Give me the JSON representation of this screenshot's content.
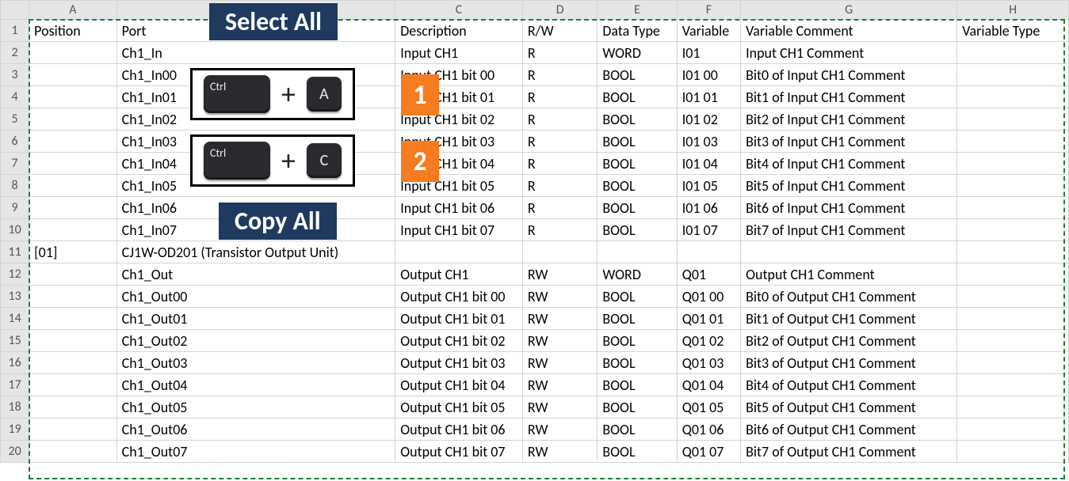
{
  "columns": {
    "headers": [
      "A",
      "B",
      "C",
      "D",
      "E",
      "F",
      "G",
      "H"
    ],
    "widths": [
      110,
      350,
      160,
      94,
      100,
      80,
      272,
      140
    ],
    "fields": [
      "position",
      "port",
      "description",
      "rw",
      "datatype",
      "variable",
      "varcomment",
      "vartype"
    ]
  },
  "header_row": {
    "position": "Position",
    "port": "Port",
    "description": "Description",
    "rw": "R/W",
    "datatype": "Data Type",
    "variable": "Variable",
    "varcomment": "Variable Comment",
    "vartype": "Variable Type"
  },
  "rows": [
    {
      "n": "1",
      "position": "Position",
      "port": "Port",
      "description": "Description",
      "rw": "R/W",
      "datatype": "Data Type",
      "variable": "Variable",
      "varcomment": "Variable Comment",
      "vartype": "Variable Type"
    },
    {
      "n": "2",
      "position": "",
      "port": "Ch1_In",
      "description": "Input CH1",
      "rw": "R",
      "datatype": "WORD",
      "variable": "I01",
      "varcomment": "Input CH1 Comment",
      "vartype": ""
    },
    {
      "n": "3",
      "position": "",
      "port": "Ch1_In00",
      "description": "Input CH1 bit 00",
      "rw": "R",
      "datatype": "BOOL",
      "variable": "I01 00",
      "varcomment": "Bit0 of Input CH1 Comment",
      "vartype": ""
    },
    {
      "n": "4",
      "position": "",
      "port": "Ch1_In01",
      "description": "Input CH1 bit 01",
      "rw": "R",
      "datatype": "BOOL",
      "variable": "I01 01",
      "varcomment": "Bit1 of Input CH1 Comment",
      "vartype": ""
    },
    {
      "n": "5",
      "position": "",
      "port": "Ch1_In02",
      "description": "Input CH1 bit 02",
      "rw": "R",
      "datatype": "BOOL",
      "variable": "I01 02",
      "varcomment": "Bit2 of Input CH1 Comment",
      "vartype": ""
    },
    {
      "n": "6",
      "position": "",
      "port": "Ch1_In03",
      "description": "Input CH1 bit 03",
      "rw": "R",
      "datatype": "BOOL",
      "variable": "I01 03",
      "varcomment": "Bit3 of Input CH1 Comment",
      "vartype": ""
    },
    {
      "n": "7",
      "position": "",
      "port": "Ch1_In04",
      "description": "Input CH1 bit 04",
      "rw": "R",
      "datatype": "BOOL",
      "variable": "I01 04",
      "varcomment": "Bit4 of Input CH1 Comment",
      "vartype": ""
    },
    {
      "n": "8",
      "position": "",
      "port": "Ch1_In05",
      "description": "Input CH1 bit 05",
      "rw": "R",
      "datatype": "BOOL",
      "variable": "I01 05",
      "varcomment": "Bit5 of Input CH1 Comment",
      "vartype": ""
    },
    {
      "n": "9",
      "position": "",
      "port": "Ch1_In06",
      "description": "Input CH1 bit 06",
      "rw": "R",
      "datatype": "BOOL",
      "variable": "I01 06",
      "varcomment": "Bit6 of Input CH1 Comment",
      "vartype": ""
    },
    {
      "n": "10",
      "position": "",
      "port": "Ch1_In07",
      "description": "Input CH1 bit 07",
      "rw": "R",
      "datatype": "BOOL",
      "variable": "I01 07",
      "varcomment": "Bit7 of Input CH1 Comment",
      "vartype": ""
    },
    {
      "n": "11",
      "position": "[01]",
      "port": "CJ1W-OD201 (Transistor Output Unit)",
      "description": "",
      "rw": "",
      "datatype": "",
      "variable": "",
      "varcomment": "",
      "vartype": ""
    },
    {
      "n": "12",
      "position": "",
      "port": "Ch1_Out",
      "description": "Output CH1",
      "rw": "RW",
      "datatype": "WORD",
      "variable": "Q01",
      "varcomment": "Output CH1 Comment",
      "vartype": ""
    },
    {
      "n": "13",
      "position": "",
      "port": "Ch1_Out00",
      "description": "Output CH1 bit 00",
      "rw": "RW",
      "datatype": "BOOL",
      "variable": "Q01 00",
      "varcomment": "Bit0 of Output CH1 Comment",
      "vartype": ""
    },
    {
      "n": "14",
      "position": "",
      "port": "Ch1_Out01",
      "description": "Output CH1 bit 01",
      "rw": "RW",
      "datatype": "BOOL",
      "variable": "Q01 01",
      "varcomment": "Bit1 of Output CH1 Comment",
      "vartype": ""
    },
    {
      "n": "15",
      "position": "",
      "port": "Ch1_Out02",
      "description": "Output CH1 bit 02",
      "rw": "RW",
      "datatype": "BOOL",
      "variable": "Q01 02",
      "varcomment": "Bit2 of Output CH1 Comment",
      "vartype": ""
    },
    {
      "n": "16",
      "position": "",
      "port": "Ch1_Out03",
      "description": "Output CH1 bit 03",
      "rw": "RW",
      "datatype": "BOOL",
      "variable": "Q01 03",
      "varcomment": "Bit3 of Output CH1 Comment",
      "vartype": ""
    },
    {
      "n": "17",
      "position": "",
      "port": "Ch1_Out04",
      "description": "Output CH1 bit 04",
      "rw": "RW",
      "datatype": "BOOL",
      "variable": "Q01 04",
      "varcomment": "Bit4 of Output CH1 Comment",
      "vartype": ""
    },
    {
      "n": "18",
      "position": "",
      "port": "Ch1_Out05",
      "description": "Output CH1 bit 05",
      "rw": "RW",
      "datatype": "BOOL",
      "variable": "Q01 05",
      "varcomment": "Bit5 of Output CH1 Comment",
      "vartype": ""
    },
    {
      "n": "19",
      "position": "",
      "port": "Ch1_Out06",
      "description": "Output CH1 bit 06",
      "rw": "RW",
      "datatype": "BOOL",
      "variable": "Q01 06",
      "varcomment": "Bit6 of Output CH1 Comment",
      "vartype": ""
    },
    {
      "n": "20",
      "position": "",
      "port": "Ch1_Out07",
      "description": "Output CH1 bit 07",
      "rw": "RW",
      "datatype": "BOOL",
      "variable": "Q01 07",
      "varcomment": "Bit7 of Output CH1 Comment",
      "vartype": ""
    }
  ],
  "overlays": {
    "select_all_label": "Select All",
    "copy_all_label": "Copy All",
    "ctrl_label": "Ctrl",
    "key_a": "A",
    "key_c": "C",
    "plus": "+",
    "step1": "1",
    "step2": "2"
  },
  "styling": {
    "label_bg": "#1e3a5f",
    "badge_bg": "#f57c1f",
    "key_bg": "#2a2a2e",
    "selection_border": "#1b7e3c",
    "grid_border": "#d4d4d4",
    "header_bg": "#e6e6e6"
  }
}
